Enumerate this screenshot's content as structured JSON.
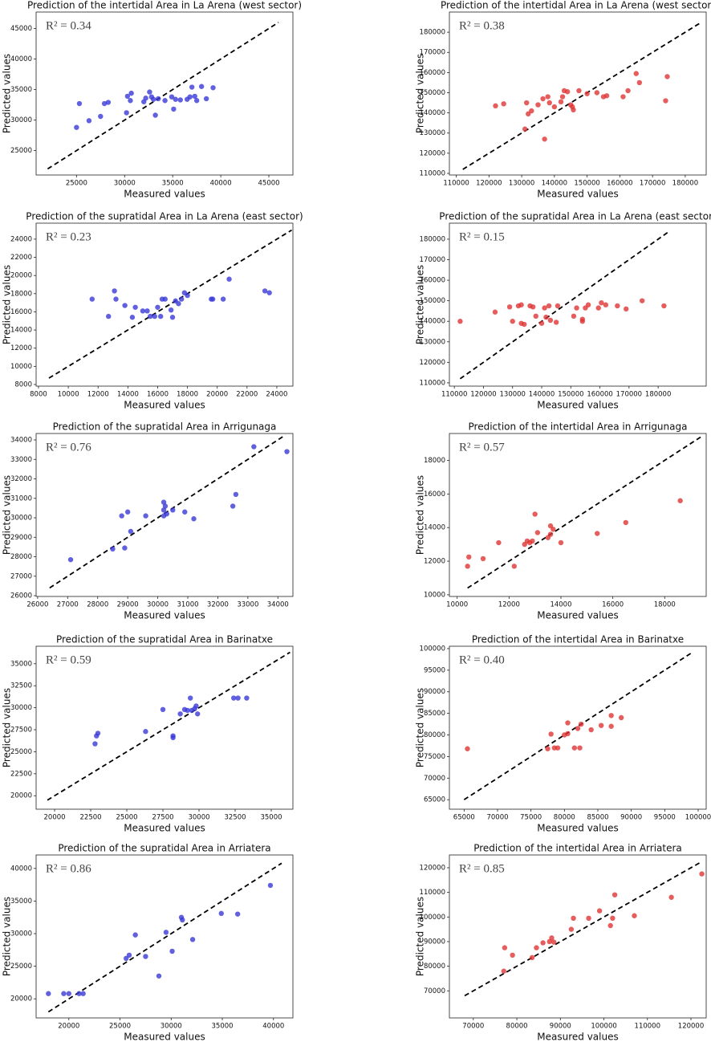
{
  "chart_data": [
    {
      "type": "scatter",
      "title": "Prediction of the intertidal Area in La Arena (west sector)",
      "xlabel": "Measured values",
      "ylabel": "Predicted values",
      "annotation": "R² = 0.34",
      "color": "#3a3ad8",
      "x": [
        25000,
        25300,
        26300,
        27500,
        27900,
        28300,
        30200,
        30300,
        30700,
        30600,
        32000,
        32200,
        32600,
        32800,
        33000,
        33200,
        33500,
        34200,
        34900,
        35100,
        35300,
        35800,
        36500,
        36800,
        37000,
        37300,
        37500,
        38000,
        38500,
        39200
      ],
      "values": [
        28800,
        32700,
        29900,
        30600,
        32700,
        32900,
        31200,
        33900,
        34400,
        33200,
        33000,
        33600,
        34600,
        33800,
        33400,
        30800,
        33500,
        33200,
        33800,
        31800,
        33400,
        33300,
        33400,
        33800,
        35400,
        33900,
        33200,
        35500,
        33500,
        35300
      ],
      "diagonal": [
        22000,
        46000
      ],
      "xlim": [
        20800,
        47500
      ],
      "ylim": [
        21000,
        47700
      ],
      "xticks": [
        25000,
        30000,
        35000,
        40000,
        45000
      ],
      "yticks": [
        25000,
        30000,
        35000,
        40000,
        45000
      ]
    },
    {
      "type": "scatter",
      "title": "Prediction of the intertidal Area in La Arena (west sector)",
      "xlabel": "Measured values",
      "ylabel": "Predicted values",
      "annotation": "R² = 0.38",
      "color": "#e03535",
      "x": [
        122000,
        124500,
        131000,
        131500,
        132000,
        133000,
        135000,
        136500,
        137000,
        138000,
        138500,
        140000,
        142000,
        142500,
        143000,
        144000,
        145000,
        145500,
        145800,
        147500,
        150000,
        153000,
        155000,
        156000,
        161000,
        162500,
        165000,
        166000,
        174000,
        174500
      ],
      "values": [
        143500,
        144500,
        132000,
        145000,
        139500,
        141000,
        144000,
        147000,
        127000,
        148000,
        145000,
        143000,
        145500,
        148000,
        151000,
        150500,
        144000,
        143000,
        141500,
        151000,
        149500,
        150000,
        148000,
        148500,
        148000,
        151000,
        159500,
        155000,
        146000,
        158000
      ],
      "diagonal": [
        112000,
        185000
      ],
      "xlim": [
        107900,
        186400
      ],
      "ylim": [
        109200,
        190000
      ],
      "xticks": [
        110000,
        120000,
        130000,
        140000,
        150000,
        160000,
        170000,
        180000
      ],
      "yticks": [
        110000,
        120000,
        130000,
        140000,
        150000,
        160000,
        170000,
        180000
      ]
    },
    {
      "type": "scatter",
      "title": "Prediction of the supratidal Area in La Arena (east sector)",
      "xlabel": "Measured values",
      "ylabel": "Predicted values",
      "annotation": "R² = 0.23",
      "color": "#3a3ad8",
      "x": [
        11600,
        12700,
        13100,
        13200,
        13800,
        14300,
        14500,
        15000,
        15300,
        15500,
        15800,
        16000,
        16200,
        16300,
        16500,
        17000,
        17200,
        17400,
        17600,
        17800,
        18000,
        19600,
        19700,
        20400,
        20800,
        23200,
        23500,
        16900
      ],
      "values": [
        17400,
        15500,
        18300,
        17400,
        16700,
        15400,
        16500,
        16100,
        16100,
        15500,
        15500,
        16500,
        15500,
        17400,
        17400,
        15400,
        17200,
        16900,
        17400,
        18100,
        17800,
        17400,
        17400,
        17400,
        19600,
        18300,
        18100,
        16200
      ],
      "diagonal": [
        8700,
        25000
      ],
      "xlim": [
        7840,
        25080
      ],
      "ylim": [
        7820,
        25760
      ],
      "xticks": [
        8000,
        10000,
        12000,
        14000,
        16000,
        18000,
        20000,
        22000,
        24000
      ],
      "yticks": [
        8000,
        10000,
        12000,
        14000,
        16000,
        18000,
        20000,
        22000,
        24000
      ]
    },
    {
      "type": "scatter",
      "title": "Prediction of the supratidal Area in La Arena (east sector)",
      "xlabel": "Measured values",
      "ylabel": "Predicted values",
      "annotation": "R² = 0.15",
      "color": "#e03535",
      "x": [
        112000,
        124000,
        129000,
        130000,
        132000,
        133000,
        133000,
        134000,
        136000,
        137000,
        138000,
        140000,
        141000,
        141500,
        142500,
        143000,
        145000,
        145500,
        151000,
        152000,
        154000,
        154000,
        155000,
        156000,
        159500,
        160500,
        162000,
        166000,
        169000,
        174500,
        182000
      ],
      "values": [
        140000,
        144500,
        147000,
        140000,
        147500,
        148000,
        139000,
        138500,
        147500,
        147000,
        142500,
        139000,
        146500,
        142000,
        147500,
        140500,
        139500,
        147500,
        142500,
        146500,
        140000,
        141000,
        146500,
        148000,
        146500,
        149000,
        148000,
        147500,
        146000,
        150000,
        147500
      ],
      "diagonal": [
        112000,
        184000
      ],
      "xlim": [
        108300,
        196500
      ],
      "ylim": [
        108400,
        187800
      ],
      "xticks": [
        110000,
        120000,
        130000,
        140000,
        150000,
        160000,
        170000,
        180000
      ],
      "yticks": [
        110000,
        120000,
        130000,
        140000,
        150000,
        160000,
        170000,
        180000
      ]
    },
    {
      "type": "scatter",
      "title": "Prediction of the supratidal Area in Arrigunaga",
      "xlabel": "Measured values",
      "ylabel": "Predicted values",
      "annotation": "R² = 0.76",
      "color": "#3a3ad8",
      "x": [
        27100,
        28500,
        28800,
        28900,
        29000,
        29100,
        29600,
        30200,
        30200,
        30200,
        30250,
        30300,
        30500,
        30900,
        31200,
        32500,
        32600,
        33200,
        34300
      ],
      "values": [
        27850,
        28400,
        30100,
        28450,
        30300,
        29300,
        30100,
        30100,
        30400,
        30800,
        30600,
        30200,
        30400,
        30300,
        29950,
        30600,
        31200,
        33650,
        33400
      ],
      "diagonal": [
        26400,
        34250
      ],
      "xlim": [
        25950,
        34500
      ],
      "ylim": [
        25960,
        34330
      ],
      "xticks": [
        26000,
        27000,
        28000,
        29000,
        30000,
        31000,
        32000,
        33000,
        34000
      ],
      "yticks": [
        26000,
        27000,
        28000,
        29000,
        30000,
        31000,
        32000,
        33000,
        34000
      ]
    },
    {
      "type": "scatter",
      "title": "Prediction of the intertidal Area in Arrigunaga",
      "xlabel": "Measured values",
      "ylabel": "Predicted values",
      "annotation": "R² = 0.57",
      "color": "#e03535",
      "x": [
        10400,
        10450,
        11000,
        11600,
        12200,
        12600,
        12700,
        12800,
        12900,
        13000,
        13100,
        13500,
        13600,
        13600,
        13700,
        14000,
        15400,
        16500,
        18600
      ],
      "values": [
        11700,
        12250,
        12150,
        13100,
        11700,
        13000,
        13200,
        13100,
        13200,
        14800,
        13700,
        13400,
        13600,
        14100,
        13900,
        13100,
        13650,
        14300,
        15600
      ],
      "diagonal": [
        10400,
        19400
      ],
      "xlim": [
        9700,
        19600
      ],
      "ylim": [
        9900,
        19600
      ],
      "xticks": [
        10000,
        12000,
        14000,
        16000,
        18000
      ],
      "yticks": [
        10000,
        12000,
        14000,
        16000,
        18000
      ]
    },
    {
      "type": "scatter",
      "title": "Prediction of the supratidal Area in Barinatxe",
      "xlabel": "Measured values",
      "ylabel": "Predicted values",
      "annotation": "R² = 0.59",
      "color": "#3a3ad8",
      "x": [
        22800,
        22900,
        23000,
        26300,
        27500,
        28200,
        28200,
        28700,
        29000,
        29200,
        29400,
        29500,
        29700,
        29800,
        29900,
        32400,
        32700,
        33300
      ],
      "values": [
        25900,
        26800,
        27100,
        27300,
        29800,
        26600,
        26800,
        29300,
        29800,
        29700,
        31100,
        29700,
        29900,
        30200,
        29300,
        31100,
        31100,
        31100
      ],
      "diagonal": [
        19500,
        36300
      ],
      "xlim": [
        18720,
        36500
      ],
      "ylim": [
        18470,
        36990
      ],
      "xticks": [
        20000,
        22500,
        25000,
        27500,
        30000,
        32500,
        35000
      ],
      "yticks": [
        20000,
        22500,
        25000,
        27500,
        30000,
        32500,
        35000
      ]
    },
    {
      "type": "scatter",
      "title": "Prediction of the intertidal Area in Barinatxe",
      "xlabel": "Measured values",
      "ylabel": "Predicted values",
      "annotation": "R² = 0.40",
      "color": "#e03535",
      "x": [
        65500,
        77500,
        78000,
        78500,
        79000,
        80000,
        80500,
        80500,
        81500,
        82000,
        82300,
        82500,
        84000,
        85500,
        87000,
        87000,
        88500
      ],
      "values": [
        76800,
        76800,
        80200,
        77000,
        77000,
        80000,
        82800,
        80300,
        77000,
        81500,
        77000,
        82500,
        81200,
        82200,
        84500,
        82000,
        84000
      ],
      "diagonal": [
        65000,
        99000
      ],
      "xlim": [
        62800,
        101200
      ],
      "ylim": [
        62800,
        100550
      ],
      "xticks": [
        65000,
        70000,
        75000,
        80000,
        85000,
        90000,
        95000,
        100000
      ],
      "yticks": [
        65000,
        70000,
        75000,
        80000,
        85000,
        90000,
        95000,
        100000
      ]
    },
    {
      "type": "scatter",
      "title": "Prediction of the supratidal Area in Arriatera",
      "xlabel": "Measured values",
      "ylabel": "Predicted values",
      "annotation": "R² = 0.86",
      "color": "#3a3ad8",
      "x": [
        18000,
        19500,
        20000,
        21000,
        21400,
        25600,
        25900,
        26500,
        27500,
        28800,
        29500,
        30100,
        31000,
        31100,
        32100,
        34900,
        36500,
        39700
      ],
      "values": [
        20800,
        20800,
        20800,
        20800,
        20800,
        26200,
        26700,
        29800,
        26500,
        23500,
        30200,
        27300,
        32500,
        32100,
        29100,
        33100,
        33000,
        37400
      ],
      "diagonal": [
        18000,
        40800
      ],
      "xlim": [
        16800,
        41900
      ],
      "ylim": [
        17070,
        42070
      ],
      "xticks": [
        20000,
        25000,
        30000,
        35000,
        40000
      ],
      "yticks": [
        20000,
        25000,
        30000,
        35000,
        40000
      ]
    },
    {
      "type": "scatter",
      "title": "Prediction of the intertidal Area in Arriatera",
      "xlabel": "Measured values",
      "ylabel": "Predicted values",
      "annotation": "R² = 0.85",
      "color": "#e03535",
      "x": [
        77000,
        77200,
        79000,
        83500,
        84500,
        86000,
        87500,
        88000,
        88500,
        92500,
        93000,
        96500,
        99000,
        101500,
        102000,
        102500,
        107000,
        115500,
        122500
      ],
      "values": [
        78000,
        87500,
        84500,
        83500,
        87500,
        89500,
        90000,
        91500,
        89800,
        95000,
        99500,
        99500,
        102500,
        96500,
        99500,
        109000,
        100500,
        108000,
        117500
      ],
      "diagonal": [
        68000,
        122500
      ],
      "xlim": [
        64500,
        123500
      ],
      "ylim": [
        59000,
        125200
      ],
      "xticks": [
        70000,
        80000,
        90000,
        100000,
        110000,
        120000
      ],
      "yticks": [
        70000,
        80000,
        90000,
        100000,
        110000,
        120000
      ]
    }
  ]
}
